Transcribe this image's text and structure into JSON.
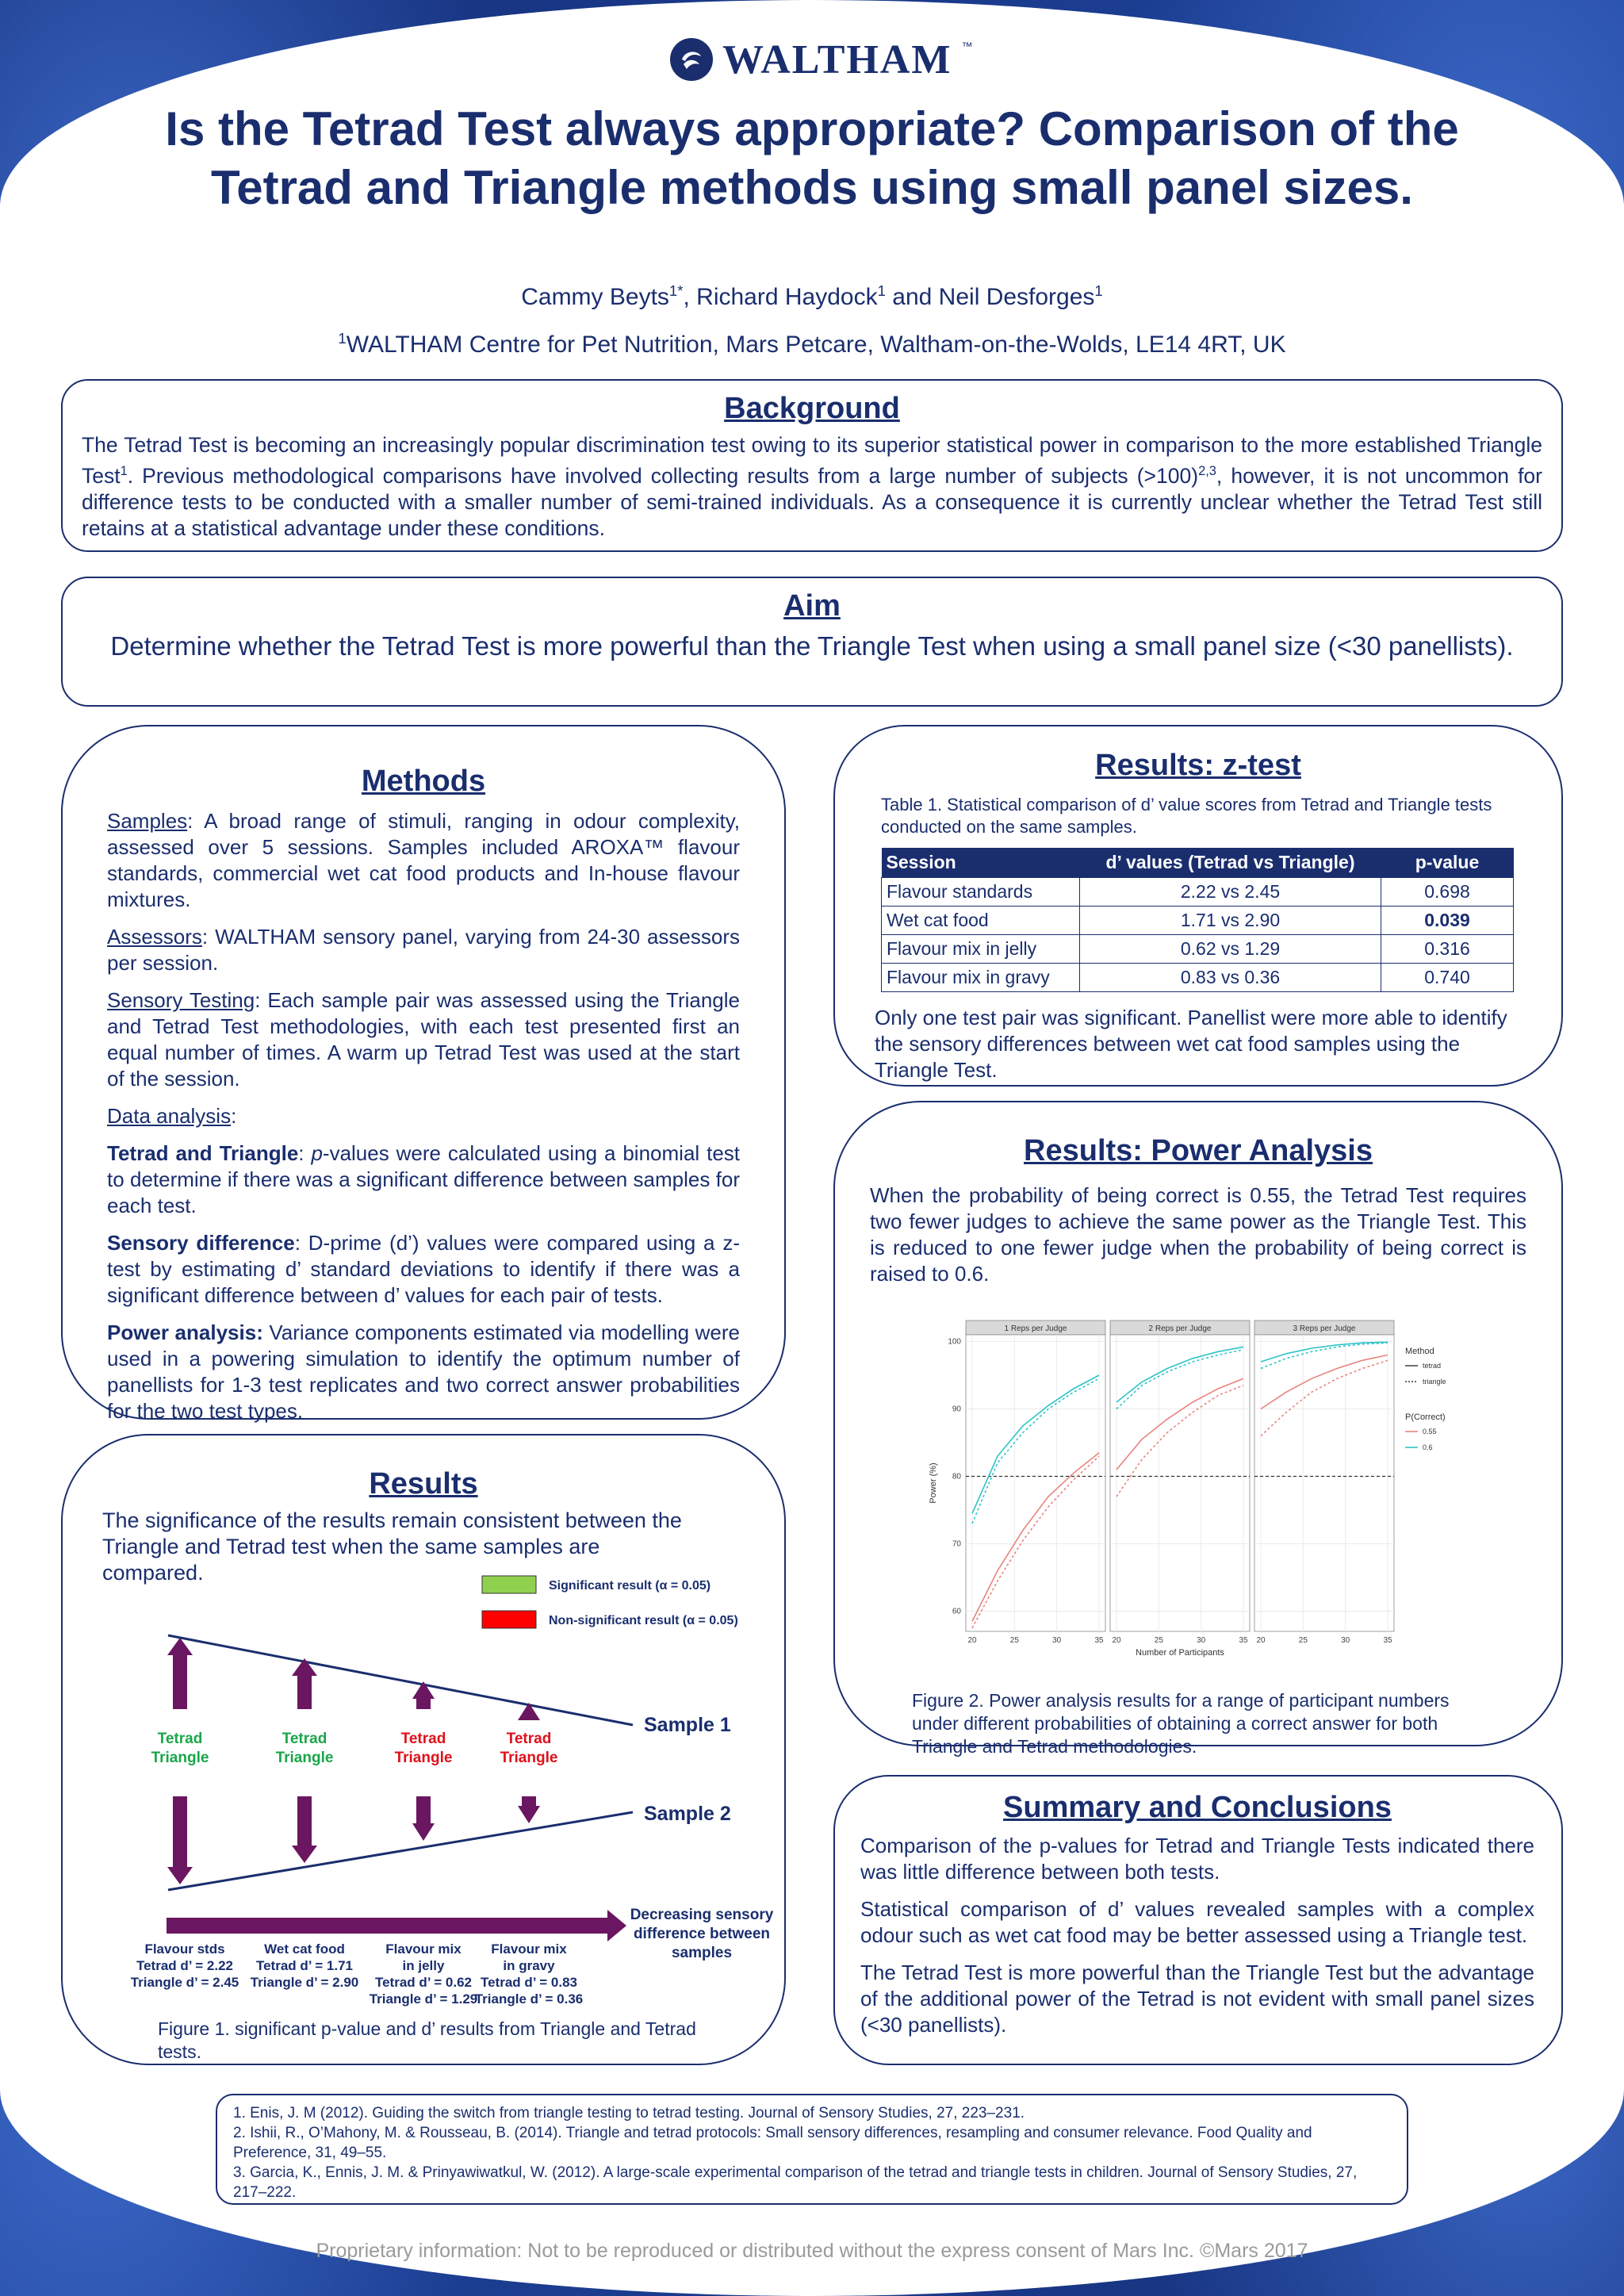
{
  "logo": {
    "text": "WALTHAM",
    "tm": "™"
  },
  "title": "Is the Tetrad Test always appropriate? Comparison of the Tetrad and Triangle methods using small panel sizes.",
  "authors": {
    "a1": "Cammy Beyts",
    "a1_sup": "1*",
    "sep1": ", Richard Haydock",
    "a2_sup": "1",
    "sep2": " and Neil Desforges",
    "a3_sup": "1"
  },
  "affiliation": {
    "sup": "1",
    "text": "WALTHAM Centre for Pet Nutrition, Mars Petcare, Waltham-on-the-Wolds, LE14 4RT, UK"
  },
  "background": {
    "heading": "Background",
    "p1": "The Tetrad Test is becoming an increasingly popular discrimination test owing to its superior statistical power in comparison to the more established Triangle Test",
    "p1_sup": "1",
    "p2": ". Previous methodological comparisons have involved collecting results from a large number of subjects (>100)",
    "p2_sup": "2,3",
    "p3": ", however, it is not uncommon for difference tests to be conducted with a smaller number of semi-trained individuals. As a consequence it is currently unclear whether the Tetrad Test still retains at a statistical advantage under these conditions."
  },
  "aim": {
    "heading": "Aim",
    "text": "Determine whether the Tetrad Test is more powerful than the Triangle Test when using a small panel size (<30 panellists)."
  },
  "methods": {
    "heading": "Methods",
    "samples_label": "Samples",
    "samples_text": ": A broad range of stimuli, ranging in odour complexity, assessed over 5 sessions. Samples included AROXA™ flavour standards, commercial wet cat food products and In-house flavour mixtures.",
    "assessors_label": "Assessors",
    "assessors_text": ": WALTHAM sensory panel, varying from 24-30 assessors per session.",
    "testing_label": "Sensory Testing",
    "testing_text": ": Each sample pair was assessed using the Triangle and Tetrad Test methodologies, with each test presented first an equal number of times.  A warm up Tetrad Test was used at the start of the session.",
    "data_label": "Data analysis",
    "data_colon": ":",
    "tt_label": "Tetrad and Triangle",
    "tt_colon": ": ",
    "tt_p": "p",
    "tt_text": "-values were calculated using a binomial test to determine if there was a significant difference between samples for each test.",
    "sd_label": "Sensory difference",
    "sd_text": ": D-prime (d’) values were compared using a z-test by estimating d’ standard deviations to identify if there was a significant difference between d’ values for each pair of tests.",
    "pa_label": "Power analysis:",
    "pa_text": " Variance components estimated via modelling were used in a powering simulation to identify the optimum number of panellists for 1-3 test replicates and two correct answer probabilities for the two test types."
  },
  "results": {
    "heading": "Results",
    "text": "The significance of the results remain consistent between the Triangle and Tetrad test when the same samples are compared.",
    "legend_sig": "Significant result (α = 0.05)",
    "legend_nonsig": "Non-significant result (α = 0.05)",
    "sample1": "Sample 1",
    "sample2": "Sample 2",
    "decreasing": [
      "Decreasing sensory",
      "difference between",
      "samples"
    ],
    "groups": [
      {
        "tetrad": "Tetrad",
        "triangle": "Triangle",
        "significant": true,
        "lines": [
          "Flavour stds",
          "Tetrad d’ = 2.22",
          "Triangle d’ = 2.45"
        ]
      },
      {
        "tetrad": "Tetrad",
        "triangle": "Triangle",
        "significant": true,
        "lines": [
          "Wet cat food",
          "Tetrad d’ = 1.71",
          "Triangle d’ = 2.90"
        ]
      },
      {
        "tetrad": "Tetrad",
        "triangle": "Triangle",
        "significant": false,
        "lines": [
          "Flavour mix",
          "in jelly",
          "Tetrad d’ = 0.62",
          "Triangle d’ = 1.29"
        ]
      },
      {
        "tetrad": "Tetrad",
        "triangle": "Triangle",
        "significant": false,
        "lines": [
          "Flavour mix",
          "in gravy",
          "Tetrad d’ = 0.83",
          "Triangle d’ = 0.36"
        ]
      }
    ],
    "caption": "Figure 1. significant p-value and d’ results from Triangle and Tetrad tests.",
    "colors": {
      "sig": "#1aa64a",
      "nonsig": "#e0101a",
      "arrow": "#6b1660",
      "legend_green": "#8fd14f",
      "legend_red": "#ff0000"
    }
  },
  "ztest": {
    "heading": "Results: z-test",
    "caption": "Table 1. Statistical comparison of d’ value scores from Tetrad and Triangle tests conducted on the same samples.",
    "headers": [
      "Session",
      "d’ values (Tetrad vs Triangle)",
      "p-value"
    ],
    "rows": [
      [
        "Flavour standards",
        "2.22 vs 2.45",
        "0.698"
      ],
      [
        "Wet cat food",
        "1.71 vs 2.90",
        "0.039"
      ],
      [
        "Flavour mix in jelly",
        "0.62 vs 1.29",
        "0.316"
      ],
      [
        "Flavour mix in gravy",
        "0.83 vs 0.36",
        "0.740"
      ]
    ],
    "text": "Only one test pair was significant.  Panellist were more able to identify the sensory differences between wet cat food samples using the Triangle Test."
  },
  "power": {
    "heading": "Results: Power Analysis",
    "text": "When the probability of being correct is 0.55, the Tetrad Test requires two fewer judges to achieve the same power as the Triangle Test.  This is reduced to one fewer judge when the probability of being correct is raised to 0.6.",
    "caption": "Figure 2. Power analysis results for a range of participant numbers under different probabilities of obtaining a correct answer for both Triangle and Tetrad methodologies."
  },
  "chart_data": {
    "type": "line",
    "panels": [
      "1 Reps per Judge",
      "2 Reps per Judge",
      "3 Reps per Judge"
    ],
    "xlabel": "Number of Participants",
    "ylabel": "Power (%)",
    "xticks": [
      20,
      25,
      30,
      35
    ],
    "yticks": [
      60,
      70,
      80,
      90,
      100
    ],
    "xlim": [
      20,
      35
    ],
    "ylim": [
      57,
      101
    ],
    "reference_line": 80,
    "legend": {
      "method_title": "Method",
      "methods": [
        "tetrad",
        "triangle"
      ],
      "prob_title": "P(Correct)",
      "probs": [
        "0.55",
        "0.6"
      ]
    },
    "x": [
      20,
      23,
      26,
      29,
      32,
      35
    ],
    "series": [
      {
        "panel": 0,
        "method": "tetrad",
        "p": "0.55",
        "values": [
          58.5,
          66,
          72,
          77,
          80.5,
          83.5
        ]
      },
      {
        "panel": 0,
        "method": "triangle",
        "p": "0.55",
        "values": [
          57.5,
          64.5,
          70.5,
          75.5,
          79.5,
          83
        ]
      },
      {
        "panel": 0,
        "method": "tetrad",
        "p": "0.6",
        "values": [
          74.5,
          83,
          87.5,
          90.5,
          93,
          95
        ]
      },
      {
        "panel": 0,
        "method": "triangle",
        "p": "0.6",
        "values": [
          73,
          82,
          86.5,
          90,
          92.5,
          94.5
        ]
      },
      {
        "panel": 1,
        "method": "tetrad",
        "p": "0.55",
        "values": [
          81,
          85.5,
          88.5,
          91,
          93,
          94.5
        ]
      },
      {
        "panel": 1,
        "method": "triangle",
        "p": "0.55",
        "values": [
          77,
          82.5,
          86.5,
          89.5,
          92,
          93.5
        ]
      },
      {
        "panel": 1,
        "method": "tetrad",
        "p": "0.6",
        "values": [
          91,
          94,
          96,
          97.5,
          98.5,
          99.2
        ]
      },
      {
        "panel": 1,
        "method": "triangle",
        "p": "0.6",
        "values": [
          90,
          93.5,
          95.5,
          97,
          98,
          98.8
        ]
      },
      {
        "panel": 2,
        "method": "tetrad",
        "p": "0.55",
        "values": [
          90,
          92.5,
          94.5,
          96,
          97.2,
          98
        ]
      },
      {
        "panel": 2,
        "method": "triangle",
        "p": "0.55",
        "values": [
          86,
          89.5,
          92.5,
          94.5,
          96,
          97.2
        ]
      },
      {
        "panel": 2,
        "method": "tetrad",
        "p": "0.6",
        "values": [
          97,
          98.2,
          99,
          99.5,
          99.8,
          99.9
        ]
      },
      {
        "panel": 2,
        "method": "triangle",
        "p": "0.6",
        "values": [
          96,
          97.5,
          98.5,
          99.2,
          99.6,
          99.8
        ]
      }
    ],
    "colors": {
      "0.55": "#e8837c",
      "0.6": "#2ec4c8"
    }
  },
  "summary": {
    "heading": "Summary and Conclusions",
    "p1": "Comparison of the p-values for Tetrad and Triangle Tests indicated there was little difference between both tests.",
    "p2": "Statistical comparison of d’ values revealed samples with a complex odour such as wet cat food may be better assessed using a Triangle test.",
    "p3": "The Tetrad Test is more powerful than the Triangle Test but the advantage of the additional power of the Tetrad is not evident with small panel sizes (<30 panellists)."
  },
  "references": [
    "1. Enis, J. M (2012). Guiding the switch from triangle testing to tetrad testing. Journal of Sensory Studies, 27, 223–231.",
    "2. Ishii, R., O’Mahony, M. & Rousseau, B. (2014). Triangle and tetrad protocols: Small sensory differences, resampling and consumer relevance. Food Quality and Preference, 31, 49–55.",
    "3. Garcia, K., Ennis, J. M. & Prinyawiwatkul, W. (2012). A large-scale experimental comparison of the tetrad and triangle tests in children. Journal of Sensory Studies, 27, 217–222."
  ],
  "footer": "Proprietary information: Not to be reproduced or distributed without the express consent of Mars Inc. ©Mars 2017"
}
